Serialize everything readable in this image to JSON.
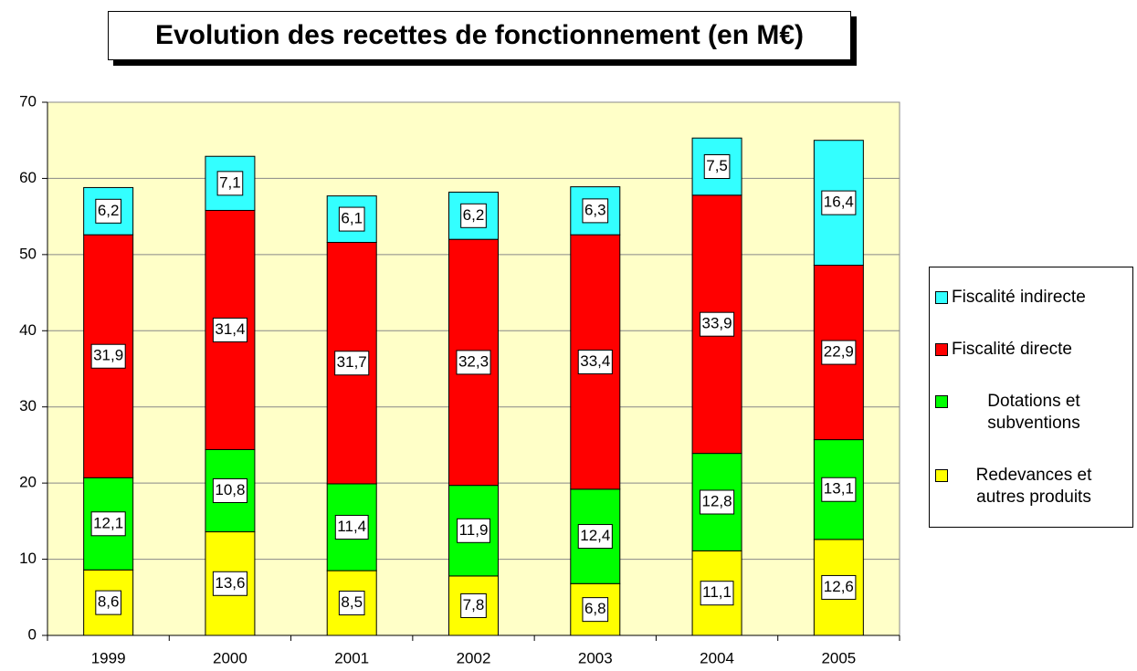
{
  "chart_data": {
    "type": "stacked_bar",
    "title": "Evolution des recettes de fonctionnement (en M€)",
    "categories": [
      "1999",
      "2000",
      "2001",
      "2002",
      "2003",
      "2004",
      "2005"
    ],
    "series": [
      {
        "name": "Redevances et autres produits",
        "color": "#ffff00",
        "values": [
          8.6,
          13.6,
          8.5,
          7.8,
          6.8,
          11.1,
          12.6
        ],
        "value_labels": [
          "8,6",
          "13,6",
          "8,5",
          "7,8",
          "6,8",
          "11,1",
          "12,6"
        ]
      },
      {
        "name": "Dotations et subventions",
        "color": "#00ff00",
        "values": [
          12.1,
          10.8,
          11.4,
          11.9,
          12.4,
          12.8,
          13.1
        ],
        "value_labels": [
          "12,1",
          "10,8",
          "11,4",
          "11,9",
          "12,4",
          "12,8",
          "13,1"
        ]
      },
      {
        "name": "Fiscalité directe",
        "color": "#ff0000",
        "values": [
          31.9,
          31.4,
          31.7,
          32.3,
          33.4,
          33.9,
          22.9
        ],
        "value_labels": [
          "31,9",
          "31,4",
          "31,7",
          "32,3",
          "33,4",
          "33,9",
          "22,9"
        ]
      },
      {
        "name": "Fiscalité indirecte",
        "color": "#33ffff",
        "values": [
          6.2,
          7.1,
          6.1,
          6.2,
          6.3,
          7.5,
          16.4
        ],
        "value_labels": [
          "6,2",
          "7,1",
          "6,1",
          "6,2",
          "6,3",
          "7,5",
          "16,4"
        ]
      }
    ],
    "ylim": [
      0,
      70
    ],
    "yticks": [
      0,
      10,
      20,
      30,
      40,
      50,
      60,
      70
    ],
    "grid": true,
    "legend": "right"
  }
}
